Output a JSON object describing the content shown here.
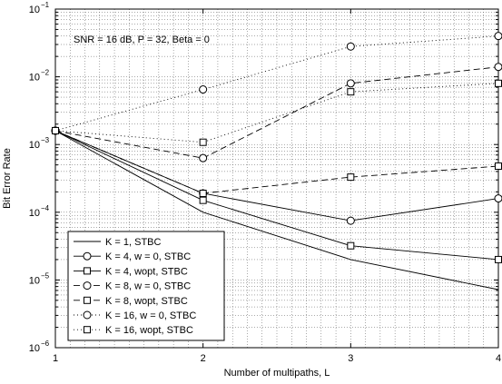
{
  "chart_data": {
    "type": "line",
    "title": "",
    "xlabel": "Number of multipaths, L",
    "ylabel": "Bit Error Rate",
    "xlim": [
      1,
      4
    ],
    "ylim": [
      1e-06,
      0.1
    ],
    "yscale": "log",
    "grid": true,
    "x_ticks": [
      {
        "value": 1,
        "label": "1"
      },
      {
        "value": 2,
        "label": "2"
      },
      {
        "value": 3,
        "label": "3"
      },
      {
        "value": 4,
        "label": "4"
      }
    ],
    "y_ticks": [
      {
        "value": 1e-06,
        "base": "10",
        "exp": "−6"
      },
      {
        "value": 1e-05,
        "base": "10",
        "exp": "−5"
      },
      {
        "value": 0.0001,
        "base": "10",
        "exp": "−4"
      },
      {
        "value": 0.001,
        "base": "10",
        "exp": "−3"
      },
      {
        "value": 0.01,
        "base": "10",
        "exp": "−2"
      },
      {
        "value": 0.1,
        "base": "10",
        "exp": "−1"
      }
    ],
    "annotation": "SNR = 16 dB, P = 32, Beta = 0",
    "legend_position": "bottom-left",
    "x": [
      1,
      2,
      3,
      4
    ],
    "series": [
      {
        "name": "K = 1, STBC",
        "line": "solid",
        "marker": "none",
        "values": [
          0.0016,
          0.0001,
          2e-05,
          7.2e-06
        ]
      },
      {
        "name": "K = 4, w = 0, STBC",
        "line": "solid",
        "marker": "circle",
        "values": [
          0.0016,
          0.00019,
          7.5e-05,
          0.00016
        ]
      },
      {
        "name": "K = 4, wopt, STBC",
        "line": "solid",
        "marker": "square",
        "values": [
          0.0016,
          0.00015,
          3.2e-05,
          2e-05
        ]
      },
      {
        "name": "K = 8, w = 0, STBC",
        "line": "dashed",
        "marker": "circle",
        "values": [
          0.0016,
          0.00063,
          0.008,
          0.014
        ]
      },
      {
        "name": "K = 8, wopt, STBC",
        "line": "dashed",
        "marker": "square",
        "values": [
          0.0016,
          0.00019,
          0.00033,
          0.00048
        ]
      },
      {
        "name": "K = 16, w = 0, STBC",
        "line": "dotted",
        "marker": "circle",
        "values": [
          0.0016,
          0.0065,
          0.028,
          0.04
        ]
      },
      {
        "name": "K = 16, wopt, STBC",
        "line": "dotted",
        "marker": "square",
        "values": [
          0.0016,
          0.00108,
          0.006,
          0.008
        ]
      }
    ]
  }
}
